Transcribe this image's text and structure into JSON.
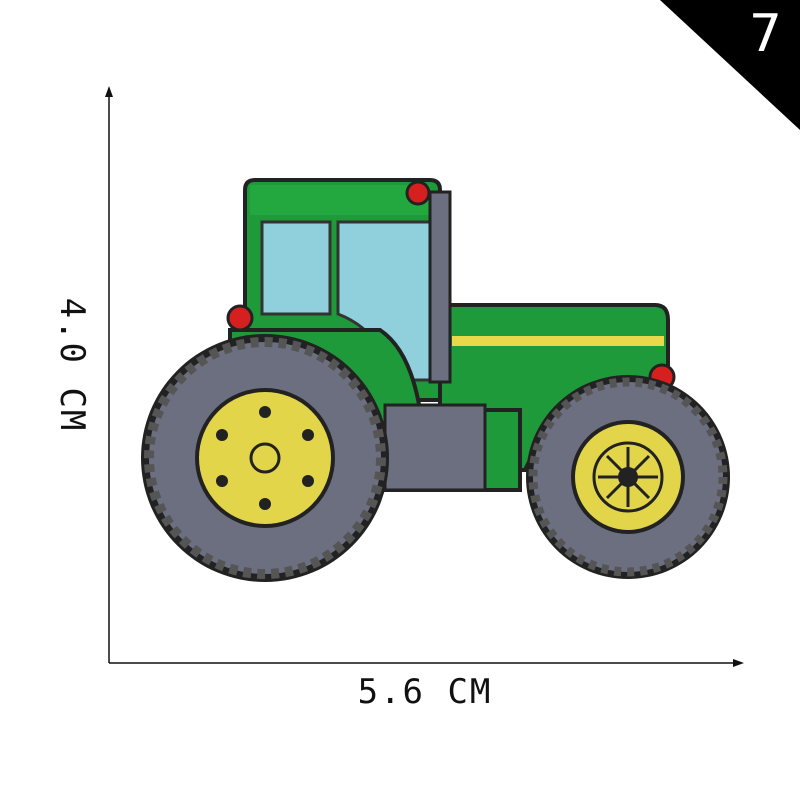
{
  "badge": {
    "number": "7",
    "color": "#000000"
  },
  "dimensions": {
    "width_label": "5.6 CM",
    "height_label": "4.0 CM"
  },
  "patch": {
    "subject": "tractor",
    "colors": {
      "body": "#1f9a3a",
      "cab_glass": "#8fd0dc",
      "tire": "#6b6f80",
      "rim": "#e3d54a",
      "light": "#d62020",
      "outline": "#222222",
      "stripe": "#e8d84a"
    }
  }
}
